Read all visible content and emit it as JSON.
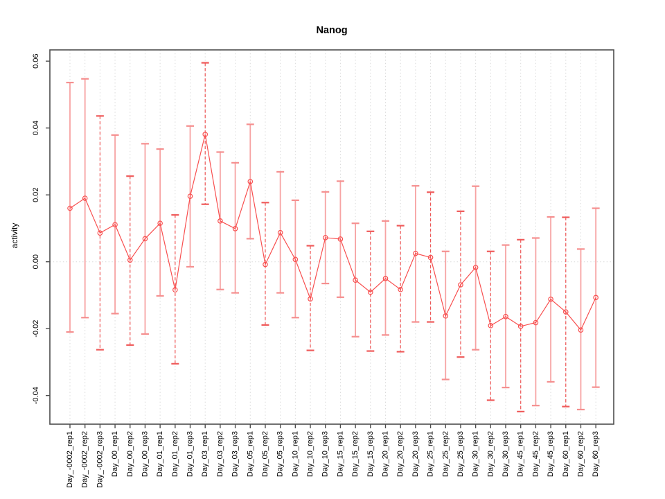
{
  "page": {
    "background": "#ffffff"
  },
  "chart_data": {
    "type": "line",
    "title": "Nanog",
    "xlabel": "",
    "ylabel": "activity",
    "legend": "none",
    "grid": "vertical dotted gridlines at each category; dotted horizontal line at y=0",
    "marker": "open-circle",
    "accent_color": "#f84f4f",
    "errorbar_solid_color": "#f7a3a3",
    "errorbar_dashed_color": "#ee5555",
    "axis_color": "#4d4d4d",
    "gridline_color": "#d9d9d9",
    "ylim": [
      -0.051,
      0.0635
    ],
    "yticks": [
      0.06,
      0.04,
      0.02,
      0.0,
      -0.02,
      -0.04
    ],
    "ytick_labels": [
      "0.06",
      "0.04",
      "0.02",
      "0.00",
      "-0.02",
      "-0.04"
    ],
    "categories": [
      "Day_-0002_rep1",
      "Day_-0002_rep2",
      "Day_-0002_rep3",
      "Day_00_rep1",
      "Day_00_rep2",
      "Day_00_rep3",
      "Day_01_rep1",
      "Day_01_rep2",
      "Day_01_rep3",
      "Day_03_rep1",
      "Day_03_rep2",
      "Day_03_rep3",
      "Day_05_rep1",
      "Day_05_rep2",
      "Day_05_rep3",
      "Day_10_rep1",
      "Day_10_rep2",
      "Day_10_rep3",
      "Day_15_rep1",
      "Day_15_rep2",
      "Day_15_rep3",
      "Day_20_rep1",
      "Day_20_rep2",
      "Day_20_rep3",
      "Day_25_rep1",
      "Day_25_rep2",
      "Day_25_rep3",
      "Day_30_rep1",
      "Day_30_rep2",
      "Day_30_rep3",
      "Day_45_rep1",
      "Day_45_rep2",
      "Day_45_rep3",
      "Day_60_rep1",
      "Day_60_rep2",
      "Day_60_rep3"
    ],
    "series": [
      {
        "name": "activity",
        "values": [
          0.016,
          0.019,
          0.0086,
          0.0111,
          0.0005,
          0.0069,
          0.0115,
          -0.0084,
          0.0196,
          0.0381,
          0.0122,
          0.0099,
          0.024,
          -0.0008,
          0.0087,
          0.0007,
          -0.0111,
          0.0072,
          0.0068,
          -0.0055,
          -0.0091,
          -0.005,
          -0.0083,
          0.0025,
          0.0013,
          -0.0162,
          -0.0069,
          -0.0017,
          -0.0191,
          -0.0164,
          -0.0193,
          -0.0182,
          -0.0112,
          -0.015,
          -0.0204,
          -0.0107
        ],
        "error_upper": [
          0.0536,
          0.0547,
          0.0436,
          0.0379,
          0.0256,
          0.0353,
          0.0337,
          0.014,
          0.0406,
          0.0595,
          0.0328,
          0.0296,
          0.0411,
          0.0177,
          0.0269,
          0.0184,
          0.0048,
          0.0209,
          0.0241,
          0.0115,
          0.0091,
          0.0122,
          0.0108,
          0.0227,
          0.0208,
          0.0031,
          0.0151,
          0.0226,
          0.0031,
          0.005,
          0.0066,
          0.0071,
          0.0134,
          0.0133,
          0.0038,
          0.016
        ],
        "error_lower": [
          -0.021,
          -0.0167,
          -0.0263,
          -0.0155,
          -0.0249,
          -0.0216,
          -0.0102,
          -0.0305,
          -0.0015,
          0.0172,
          -0.0083,
          -0.0093,
          0.0069,
          -0.0189,
          -0.0093,
          -0.0167,
          -0.0265,
          -0.0065,
          -0.0106,
          -0.0224,
          -0.0267,
          -0.0219,
          -0.0269,
          -0.018,
          -0.018,
          -0.0352,
          -0.0285,
          -0.0263,
          -0.0414,
          -0.0376,
          -0.0448,
          -0.043,
          -0.0359,
          -0.0433,
          -0.0442,
          -0.0375
        ],
        "error_bar_dashed": [
          false,
          false,
          true,
          false,
          true,
          false,
          false,
          true,
          false,
          true,
          false,
          false,
          false,
          true,
          false,
          false,
          true,
          false,
          false,
          false,
          true,
          false,
          true,
          false,
          true,
          false,
          true,
          false,
          true,
          false,
          true,
          false,
          false,
          true,
          false,
          false
        ]
      }
    ]
  }
}
